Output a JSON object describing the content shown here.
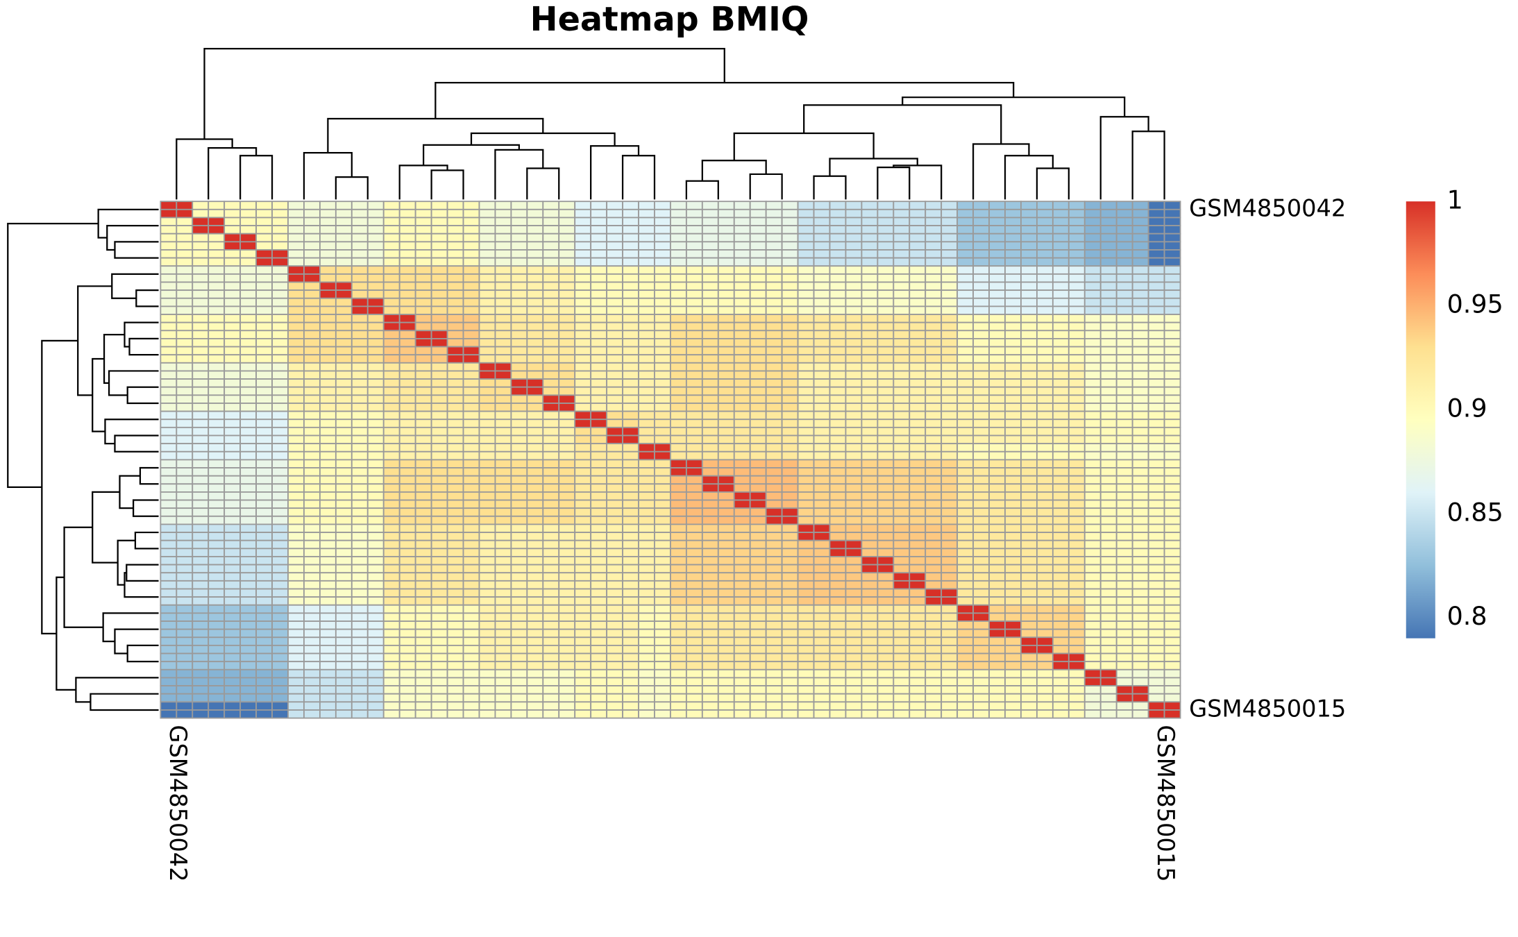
{
  "chart_data": {
    "type": "heatmap",
    "title": "Heatmap BMIQ",
    "x_labels": [
      "GSM4850042",
      null,
      null,
      null,
      null,
      null,
      null,
      null,
      null,
      null,
      null,
      null,
      null,
      null,
      null,
      null,
      null,
      null,
      null,
      null,
      null,
      null,
      null,
      null,
      null,
      null,
      null,
      null,
      null,
      null,
      null,
      "GSM4850015"
    ],
    "y_labels": [
      "GSM4850042",
      null,
      null,
      null,
      null,
      null,
      null,
      null,
      null,
      null,
      null,
      null,
      null,
      null,
      null,
      null,
      null,
      null,
      null,
      null,
      null,
      null,
      null,
      null,
      null,
      null,
      null,
      null,
      null,
      null,
      null,
      "GSM4850015"
    ],
    "values": [
      [
        1,
        0.9,
        0.9,
        0.9,
        0.88,
        0.88,
        0.88,
        0.9,
        0.9,
        0.9,
        0.88,
        0.88,
        0.88,
        0.86,
        0.86,
        0.86,
        0.87,
        0.87,
        0.87,
        0.87,
        0.85,
        0.85,
        0.85,
        0.85,
        0.85,
        0.83,
        0.83,
        0.83,
        0.83,
        0.82,
        0.82,
        0.79
      ],
      [
        0.9,
        1,
        0.9,
        0.9,
        0.88,
        0.88,
        0.88,
        0.9,
        0.9,
        0.9,
        0.88,
        0.88,
        0.88,
        0.86,
        0.86,
        0.86,
        0.87,
        0.87,
        0.87,
        0.87,
        0.85,
        0.85,
        0.85,
        0.85,
        0.85,
        0.83,
        0.83,
        0.83,
        0.83,
        0.82,
        0.82,
        0.79
      ],
      [
        0.9,
        0.9,
        1,
        0.9,
        0.88,
        0.88,
        0.88,
        0.9,
        0.9,
        0.9,
        0.88,
        0.88,
        0.88,
        0.86,
        0.86,
        0.86,
        0.87,
        0.87,
        0.87,
        0.87,
        0.85,
        0.85,
        0.85,
        0.85,
        0.85,
        0.83,
        0.83,
        0.83,
        0.83,
        0.82,
        0.82,
        0.79
      ],
      [
        0.9,
        0.9,
        0.9,
        1,
        0.88,
        0.88,
        0.88,
        0.9,
        0.9,
        0.9,
        0.88,
        0.88,
        0.88,
        0.86,
        0.86,
        0.86,
        0.87,
        0.87,
        0.87,
        0.87,
        0.85,
        0.85,
        0.85,
        0.85,
        0.85,
        0.83,
        0.83,
        0.83,
        0.83,
        0.82,
        0.82,
        0.79
      ],
      [
        0.88,
        0.88,
        0.88,
        0.88,
        1,
        0.93,
        0.93,
        0.93,
        0.93,
        0.93,
        0.91,
        0.91,
        0.91,
        0.9,
        0.9,
        0.9,
        0.9,
        0.9,
        0.9,
        0.9,
        0.89,
        0.89,
        0.89,
        0.89,
        0.89,
        0.86,
        0.86,
        0.86,
        0.86,
        0.85,
        0.85,
        0.85
      ],
      [
        0.88,
        0.88,
        0.88,
        0.88,
        0.93,
        1,
        0.93,
        0.93,
        0.93,
        0.93,
        0.91,
        0.91,
        0.91,
        0.9,
        0.9,
        0.9,
        0.9,
        0.9,
        0.9,
        0.9,
        0.89,
        0.89,
        0.89,
        0.89,
        0.89,
        0.86,
        0.86,
        0.86,
        0.86,
        0.85,
        0.85,
        0.85
      ],
      [
        0.88,
        0.88,
        0.88,
        0.88,
        0.93,
        0.93,
        1,
        0.93,
        0.93,
        0.93,
        0.91,
        0.91,
        0.91,
        0.9,
        0.9,
        0.9,
        0.9,
        0.9,
        0.9,
        0.9,
        0.89,
        0.89,
        0.89,
        0.89,
        0.89,
        0.86,
        0.86,
        0.86,
        0.86,
        0.85,
        0.85,
        0.85
      ],
      [
        0.9,
        0.9,
        0.9,
        0.9,
        0.93,
        0.93,
        0.93,
        1,
        0.94,
        0.94,
        0.92,
        0.92,
        0.92,
        0.91,
        0.91,
        0.91,
        0.93,
        0.93,
        0.93,
        0.93,
        0.92,
        0.92,
        0.92,
        0.92,
        0.92,
        0.9,
        0.9,
        0.9,
        0.9,
        0.89,
        0.89,
        0.89
      ],
      [
        0.9,
        0.9,
        0.9,
        0.9,
        0.93,
        0.93,
        0.93,
        0.94,
        1,
        0.94,
        0.92,
        0.92,
        0.92,
        0.91,
        0.91,
        0.91,
        0.93,
        0.93,
        0.93,
        0.93,
        0.92,
        0.92,
        0.92,
        0.92,
        0.92,
        0.9,
        0.9,
        0.9,
        0.9,
        0.89,
        0.89,
        0.89
      ],
      [
        0.9,
        0.9,
        0.9,
        0.9,
        0.93,
        0.93,
        0.93,
        0.94,
        0.94,
        1,
        0.92,
        0.92,
        0.92,
        0.91,
        0.91,
        0.91,
        0.93,
        0.93,
        0.93,
        0.93,
        0.92,
        0.92,
        0.92,
        0.92,
        0.92,
        0.9,
        0.9,
        0.9,
        0.9,
        0.89,
        0.89,
        0.89
      ],
      [
        0.88,
        0.88,
        0.88,
        0.88,
        0.91,
        0.91,
        0.91,
        0.92,
        0.92,
        0.92,
        1,
        0.93,
        0.93,
        0.91,
        0.91,
        0.91,
        0.93,
        0.93,
        0.93,
        0.93,
        0.91,
        0.91,
        0.91,
        0.91,
        0.91,
        0.91,
        0.91,
        0.91,
        0.91,
        0.89,
        0.89,
        0.89
      ],
      [
        0.88,
        0.88,
        0.88,
        0.88,
        0.91,
        0.91,
        0.91,
        0.92,
        0.92,
        0.92,
        0.93,
        1,
        0.93,
        0.91,
        0.91,
        0.91,
        0.93,
        0.93,
        0.93,
        0.93,
        0.91,
        0.91,
        0.91,
        0.91,
        0.91,
        0.91,
        0.91,
        0.91,
        0.91,
        0.89,
        0.89,
        0.89
      ],
      [
        0.88,
        0.88,
        0.88,
        0.88,
        0.91,
        0.91,
        0.91,
        0.92,
        0.92,
        0.92,
        0.93,
        0.93,
        1,
        0.91,
        0.91,
        0.91,
        0.93,
        0.93,
        0.93,
        0.93,
        0.91,
        0.91,
        0.91,
        0.91,
        0.91,
        0.91,
        0.91,
        0.91,
        0.91,
        0.89,
        0.89,
        0.89
      ],
      [
        0.86,
        0.86,
        0.86,
        0.86,
        0.9,
        0.9,
        0.9,
        0.91,
        0.91,
        0.91,
        0.91,
        0.91,
        0.91,
        1,
        0.93,
        0.92,
        0.92,
        0.92,
        0.92,
        0.92,
        0.91,
        0.91,
        0.91,
        0.91,
        0.91,
        0.91,
        0.91,
        0.91,
        0.91,
        0.9,
        0.9,
        0.9
      ],
      [
        0.86,
        0.86,
        0.86,
        0.86,
        0.9,
        0.9,
        0.9,
        0.91,
        0.91,
        0.91,
        0.91,
        0.91,
        0.91,
        0.93,
        1,
        0.92,
        0.92,
        0.92,
        0.92,
        0.92,
        0.91,
        0.91,
        0.91,
        0.91,
        0.91,
        0.91,
        0.91,
        0.91,
        0.91,
        0.9,
        0.9,
        0.9
      ],
      [
        0.86,
        0.86,
        0.86,
        0.86,
        0.9,
        0.9,
        0.9,
        0.91,
        0.91,
        0.91,
        0.91,
        0.91,
        0.91,
        0.92,
        0.92,
        1,
        0.92,
        0.92,
        0.92,
        0.92,
        0.91,
        0.91,
        0.91,
        0.91,
        0.91,
        0.9,
        0.9,
        0.9,
        0.9,
        0.89,
        0.89,
        0.89
      ],
      [
        0.87,
        0.87,
        0.87,
        0.87,
        0.9,
        0.9,
        0.9,
        0.93,
        0.93,
        0.93,
        0.93,
        0.93,
        0.93,
        0.92,
        0.92,
        0.92,
        1,
        0.945,
        0.945,
        0.945,
        0.935,
        0.935,
        0.935,
        0.935,
        0.935,
        0.92,
        0.92,
        0.92,
        0.92,
        0.9,
        0.9,
        0.9
      ],
      [
        0.87,
        0.87,
        0.87,
        0.87,
        0.9,
        0.9,
        0.9,
        0.93,
        0.93,
        0.93,
        0.93,
        0.93,
        0.93,
        0.92,
        0.92,
        0.92,
        0.945,
        1,
        0.945,
        0.945,
        0.935,
        0.935,
        0.935,
        0.935,
        0.935,
        0.92,
        0.92,
        0.92,
        0.92,
        0.9,
        0.9,
        0.9
      ],
      [
        0.87,
        0.87,
        0.87,
        0.87,
        0.9,
        0.9,
        0.9,
        0.93,
        0.93,
        0.93,
        0.93,
        0.93,
        0.93,
        0.92,
        0.92,
        0.92,
        0.945,
        0.945,
        1,
        0.945,
        0.935,
        0.935,
        0.935,
        0.935,
        0.935,
        0.92,
        0.92,
        0.92,
        0.92,
        0.9,
        0.9,
        0.9
      ],
      [
        0.87,
        0.87,
        0.87,
        0.87,
        0.9,
        0.9,
        0.9,
        0.93,
        0.93,
        0.93,
        0.93,
        0.93,
        0.93,
        0.92,
        0.92,
        0.92,
        0.945,
        0.945,
        0.945,
        1,
        0.935,
        0.935,
        0.935,
        0.935,
        0.935,
        0.92,
        0.92,
        0.92,
        0.92,
        0.9,
        0.9,
        0.9
      ],
      [
        0.85,
        0.85,
        0.85,
        0.85,
        0.89,
        0.89,
        0.89,
        0.92,
        0.92,
        0.92,
        0.91,
        0.91,
        0.91,
        0.91,
        0.91,
        0.91,
        0.935,
        0.935,
        0.935,
        0.935,
        1,
        0.94,
        0.94,
        0.94,
        0.94,
        0.92,
        0.92,
        0.92,
        0.92,
        0.9,
        0.9,
        0.9
      ],
      [
        0.85,
        0.85,
        0.85,
        0.85,
        0.89,
        0.89,
        0.89,
        0.92,
        0.92,
        0.92,
        0.91,
        0.91,
        0.91,
        0.91,
        0.91,
        0.91,
        0.935,
        0.935,
        0.935,
        0.935,
        0.94,
        1,
        0.94,
        0.94,
        0.94,
        0.92,
        0.92,
        0.92,
        0.92,
        0.9,
        0.9,
        0.9
      ],
      [
        0.85,
        0.85,
        0.85,
        0.85,
        0.89,
        0.89,
        0.89,
        0.92,
        0.92,
        0.92,
        0.91,
        0.91,
        0.91,
        0.91,
        0.91,
        0.91,
        0.935,
        0.935,
        0.935,
        0.935,
        0.94,
        0.94,
        1,
        0.94,
        0.94,
        0.92,
        0.92,
        0.92,
        0.92,
        0.9,
        0.9,
        0.9
      ],
      [
        0.85,
        0.85,
        0.85,
        0.85,
        0.89,
        0.89,
        0.89,
        0.92,
        0.92,
        0.92,
        0.91,
        0.91,
        0.91,
        0.91,
        0.91,
        0.91,
        0.935,
        0.935,
        0.935,
        0.935,
        0.94,
        0.94,
        0.94,
        1,
        0.94,
        0.92,
        0.92,
        0.92,
        0.92,
        0.9,
        0.9,
        0.9
      ],
      [
        0.85,
        0.85,
        0.85,
        0.85,
        0.89,
        0.89,
        0.89,
        0.92,
        0.92,
        0.92,
        0.91,
        0.91,
        0.91,
        0.91,
        0.91,
        0.91,
        0.935,
        0.935,
        0.935,
        0.935,
        0.94,
        0.94,
        0.94,
        0.94,
        1,
        0.92,
        0.92,
        0.92,
        0.92,
        0.9,
        0.9,
        0.9
      ],
      [
        0.83,
        0.83,
        0.83,
        0.83,
        0.86,
        0.86,
        0.86,
        0.9,
        0.9,
        0.9,
        0.91,
        0.91,
        0.91,
        0.91,
        0.91,
        0.9,
        0.92,
        0.92,
        0.92,
        0.92,
        0.92,
        0.92,
        0.92,
        0.92,
        0.92,
        1,
        0.935,
        0.935,
        0.935,
        0.9,
        0.9,
        0.9
      ],
      [
        0.83,
        0.83,
        0.83,
        0.83,
        0.86,
        0.86,
        0.86,
        0.9,
        0.9,
        0.9,
        0.91,
        0.91,
        0.91,
        0.91,
        0.91,
        0.9,
        0.92,
        0.92,
        0.92,
        0.92,
        0.92,
        0.92,
        0.92,
        0.92,
        0.92,
        0.935,
        1,
        0.935,
        0.935,
        0.9,
        0.9,
        0.9
      ],
      [
        0.83,
        0.83,
        0.83,
        0.83,
        0.86,
        0.86,
        0.86,
        0.9,
        0.9,
        0.9,
        0.91,
        0.91,
        0.91,
        0.91,
        0.91,
        0.9,
        0.92,
        0.92,
        0.92,
        0.92,
        0.92,
        0.92,
        0.92,
        0.92,
        0.92,
        0.935,
        0.935,
        1,
        0.935,
        0.9,
        0.9,
        0.9
      ],
      [
        0.83,
        0.83,
        0.83,
        0.83,
        0.86,
        0.86,
        0.86,
        0.9,
        0.9,
        0.9,
        0.91,
        0.91,
        0.91,
        0.91,
        0.91,
        0.9,
        0.92,
        0.92,
        0.92,
        0.92,
        0.92,
        0.92,
        0.92,
        0.92,
        0.92,
        0.935,
        0.935,
        0.935,
        1,
        0.9,
        0.9,
        0.9
      ],
      [
        0.82,
        0.82,
        0.82,
        0.82,
        0.85,
        0.85,
        0.85,
        0.89,
        0.89,
        0.89,
        0.89,
        0.89,
        0.89,
        0.9,
        0.9,
        0.89,
        0.9,
        0.9,
        0.9,
        0.9,
        0.9,
        0.9,
        0.9,
        0.9,
        0.9,
        0.9,
        0.9,
        0.9,
        0.9,
        1,
        0.88,
        0.88
      ],
      [
        0.82,
        0.82,
        0.82,
        0.82,
        0.85,
        0.85,
        0.85,
        0.89,
        0.89,
        0.89,
        0.89,
        0.89,
        0.89,
        0.9,
        0.9,
        0.89,
        0.9,
        0.9,
        0.9,
        0.9,
        0.9,
        0.9,
        0.9,
        0.9,
        0.9,
        0.9,
        0.9,
        0.9,
        0.9,
        0.88,
        1,
        0.88
      ],
      [
        0.79,
        0.79,
        0.79,
        0.79,
        0.85,
        0.85,
        0.85,
        0.89,
        0.89,
        0.89,
        0.89,
        0.89,
        0.89,
        0.9,
        0.9,
        0.89,
        0.9,
        0.9,
        0.9,
        0.9,
        0.9,
        0.9,
        0.9,
        0.9,
        0.9,
        0.9,
        0.9,
        0.9,
        0.9,
        0.88,
        0.88,
        1
      ]
    ],
    "palette": [
      "#4575b4",
      "#91bfdb",
      "#e0f3f8",
      "#ffffbf",
      "#fee090",
      "#fc8d59",
      "#d73027"
    ],
    "zlim": [
      0.79,
      1
    ],
    "zticks": [
      0.8,
      0.85,
      0.9,
      0.95,
      1
    ]
  }
}
